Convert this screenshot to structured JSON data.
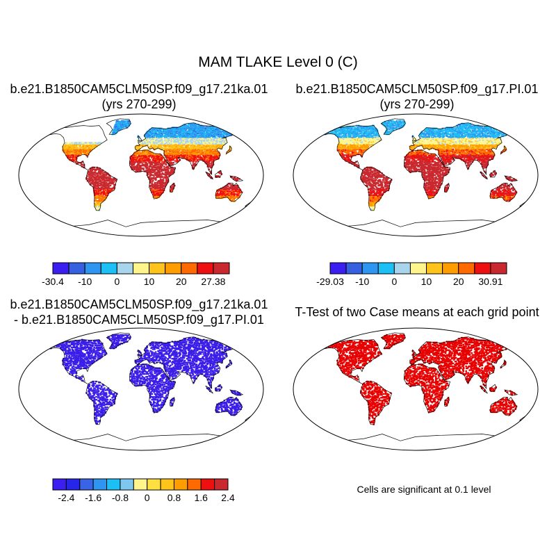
{
  "main_title": "MAM TLAKE Level 0 (C)",
  "panels": [
    {
      "title_line1": "b.e21.B1850CAM5CLM50SP.f09_g17.21ka.01",
      "title_line2": "(yrs 270-299)",
      "kind": "abs21ka"
    },
    {
      "title_line1": "b.e21.B1850CAM5CLM50SP.f09_g17.PI.01",
      "title_line2": "(yrs 270-299)",
      "kind": "absPI"
    },
    {
      "title_line1": "b.e21.B1850CAM5CLM50SP.f09_g17.21ka.01",
      "title_line2": "- b.e21.B1850CAM5CLM50SP.f09_g17.PI.01",
      "kind": "diff"
    },
    {
      "title_line1": "T-Test of two Case means at each grid point",
      "title_line2": "",
      "kind": "ttest"
    }
  ],
  "colorbars": [
    {
      "colors": [
        "#3b1ef0",
        "#3560e0",
        "#2e96f0",
        "#1cc0f4",
        "#a8d4ec",
        "#fff58c",
        "#ffc41c",
        "#ff9c00",
        "#ff6a00",
        "#ee1010",
        "#c8282e"
      ],
      "labels": [
        "-30.4",
        "-10",
        "0",
        "10",
        "20",
        "27.38"
      ],
      "label_boundaries": [
        0,
        2,
        4,
        6,
        8,
        10
      ]
    },
    {
      "colors": [
        "#3b1ef0",
        "#3560e0",
        "#2e96f0",
        "#1cc0f4",
        "#a8d4ec",
        "#fff58c",
        "#ffc41c",
        "#ff9c00",
        "#ff6a00",
        "#ee1010",
        "#c8282e"
      ],
      "labels": [
        "-29.03",
        "-10",
        "0",
        "10",
        "20",
        "30.91"
      ],
      "label_boundaries": [
        0,
        2,
        4,
        6,
        8,
        10
      ]
    },
    {
      "colors": [
        "#3b1ef0",
        "#2626e8",
        "#3a64e6",
        "#2e96f0",
        "#1cc0f4",
        "#7ec8f0",
        "#fff58c",
        "#ffe040",
        "#ffc41c",
        "#ff9c00",
        "#ff6a00",
        "#ee1010",
        "#c8282e"
      ],
      "labels": [
        "-2.4",
        "-1.6",
        "-0.8",
        "0",
        "0.8",
        "1.6",
        "2.4"
      ],
      "label_boundaries": [
        1,
        3,
        5,
        7,
        9,
        11,
        13
      ]
    }
  ],
  "note": "Cells are significant at 0.1 level",
  "colors": {
    "diff_marks": "#3a1ee8",
    "ttest_marks": "#e60000",
    "coast": "#000000",
    "border": "#000000"
  }
}
